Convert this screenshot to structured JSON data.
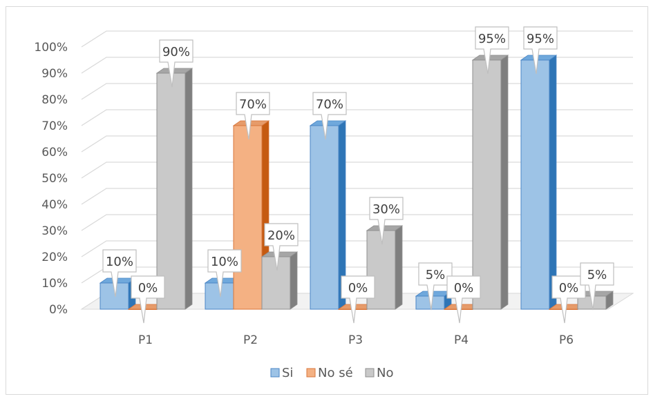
{
  "chart_data": {
    "type": "bar",
    "categories": [
      "P1",
      "P2",
      "P3",
      "P4",
      "P6"
    ],
    "series": [
      {
        "name": "Si",
        "values": [
          10,
          10,
          70,
          5,
          95
        ],
        "labels": [
          "10%",
          "10%",
          "70%",
          "5%",
          "95%"
        ]
      },
      {
        "name": "No sé",
        "values": [
          0,
          70,
          0,
          0,
          0
        ],
        "labels": [
          "0%",
          "70%",
          "0%",
          "0%",
          "0%"
        ]
      },
      {
        "name": "No",
        "values": [
          90,
          20,
          30,
          95,
          5
        ],
        "labels": [
          "90%",
          "20%",
          "30%",
          "95%",
          "5%"
        ]
      }
    ],
    "ylim": [
      0,
      100
    ],
    "yticks": [
      0,
      10,
      20,
      30,
      40,
      50,
      60,
      70,
      80,
      90,
      100
    ],
    "ytick_labels": [
      "0%",
      "10%",
      "20%",
      "30%",
      "40%",
      "50%",
      "60%",
      "70%",
      "80%",
      "90%",
      "100%"
    ],
    "grid": true,
    "legend_position": "bottom",
    "colors": {
      "Si": "#9dc3e6",
      "No sé": "#f4b183",
      "No": "#c9c9c9"
    }
  }
}
